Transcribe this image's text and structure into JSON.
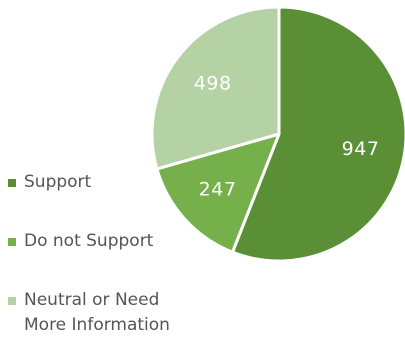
{
  "chart_data": {
    "type": "pie",
    "title": "",
    "slices": [
      {
        "label": "Support",
        "value": 947,
        "display": "947",
        "color": "#5a8f36"
      },
      {
        "label": "Do not Support",
        "value": 247,
        "display": "247",
        "color": "#76b04a"
      },
      {
        "label": "Neutral or Need\nMore Information",
        "value": 498,
        "display": "498",
        "color": "#b5d2a4"
      }
    ],
    "legend_position": "left"
  }
}
